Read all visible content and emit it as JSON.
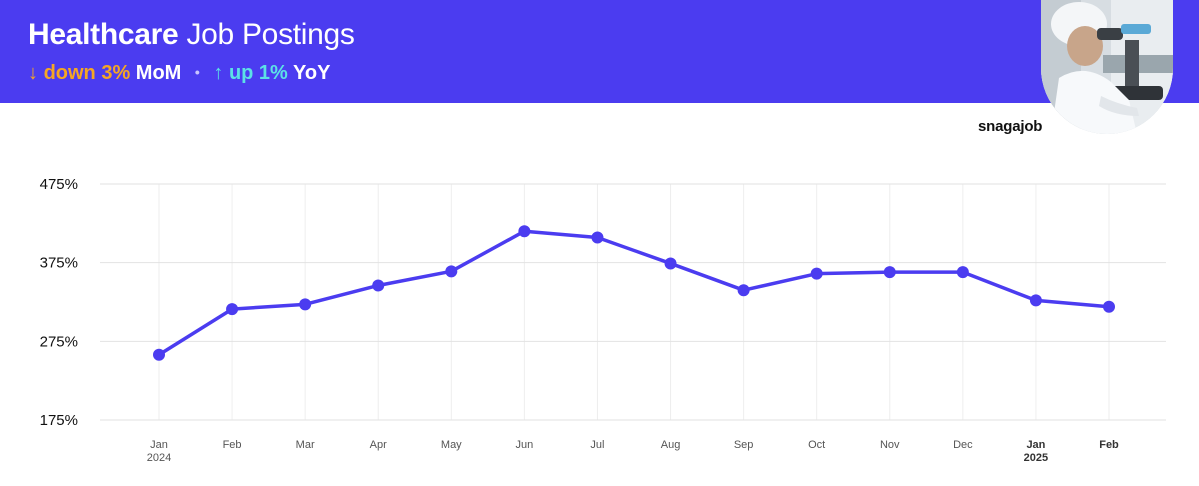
{
  "header": {
    "title_bold": "Healthcare",
    "title_rest": "Job Postings",
    "mom_arrow": "↓",
    "mom_text": "down 3%",
    "mom_label": "MoM",
    "yoy_arrow": "↑",
    "yoy_text": "up 1%",
    "yoy_label": "YoY",
    "background_color": "#4b3cf0",
    "down_color": "#f5a623",
    "up_color": "#5ce1e6"
  },
  "logo": {
    "text": "snagajob"
  },
  "chart_data": {
    "type": "line",
    "categories": [
      "Jan",
      "Feb",
      "Mar",
      "Apr",
      "May",
      "Jun",
      "Jul",
      "Aug",
      "Sep",
      "Oct",
      "Nov",
      "Dec",
      "Jan",
      "Feb"
    ],
    "category_years": [
      "2024",
      "",
      "",
      "",
      "",
      "",
      "",
      "",
      "",
      "",
      "",
      "",
      "2025",
      ""
    ],
    "series": [
      {
        "values": [
          258,
          316,
          322,
          346,
          364,
          415,
          407,
          374,
          340,
          361,
          363,
          363,
          327,
          319
        ],
        "color": "#4b3cf0"
      }
    ],
    "y_ticks": [
      "175%",
      "275%",
      "375%",
      "475%"
    ],
    "ylim": [
      175,
      475
    ],
    "y_unit": "%",
    "grid": true,
    "xlabel": "",
    "ylabel": ""
  }
}
